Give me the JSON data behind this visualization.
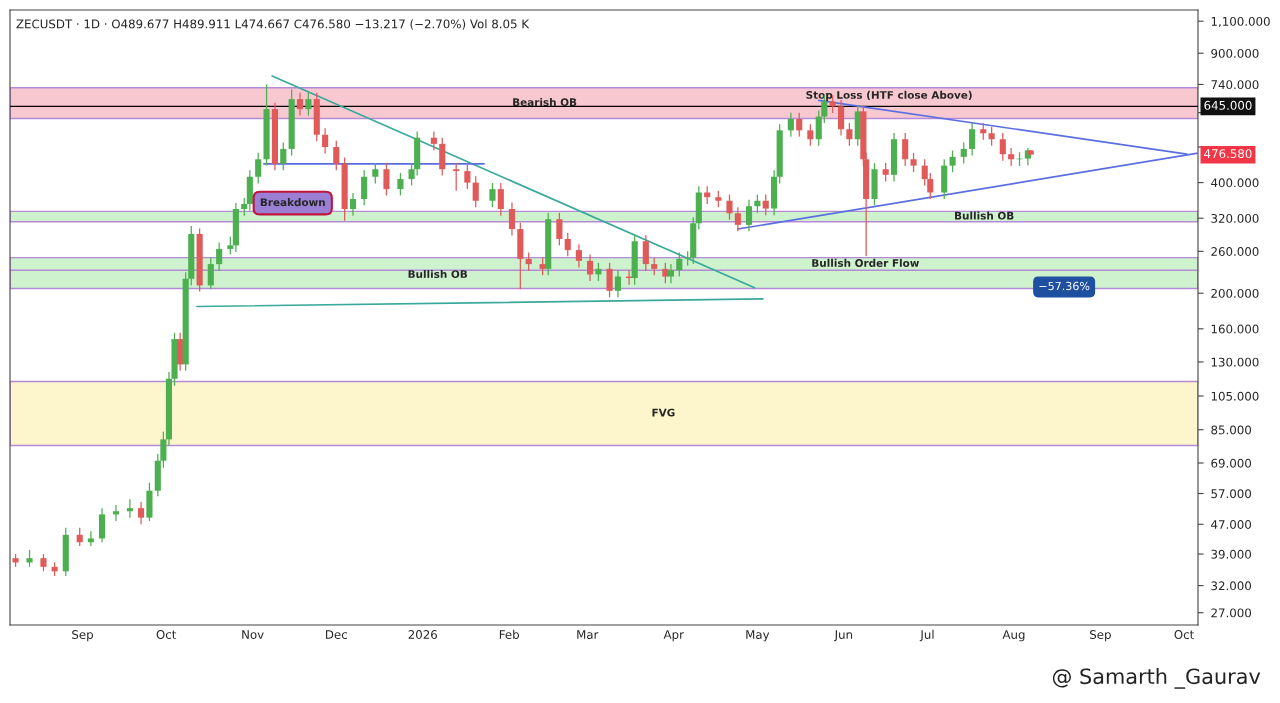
{
  "chart_data": {
    "type": "candlestick",
    "colors": [
      "#e05a5a",
      "#4caf50",
      "#e05a5a",
      "#e05a5a",
      "#4caf50",
      "#e05a5a",
      "#4caf50",
      "#4caf50",
      "#4caf50",
      "#4caf50",
      "#e05a5a",
      "#4caf50",
      "#4caf50",
      "#4caf50",
      "#4caf50",
      "#4caf50",
      "#e05a5a",
      "#4caf50",
      "#4caf50",
      "#e05a5a",
      "#4caf50",
      "#4caf50",
      "#4caf50",
      "#4caf50",
      "#4caf50",
      "#4caf50",
      "#4caf50",
      "#4caf50",
      "#e05a5a",
      "#4caf50",
      "#4caf50",
      "#e05a5a",
      "#4caf50",
      "#e05a5a",
      "#e05a5a",
      "#e05a5a",
      "#e05a5a",
      "#4caf50",
      "#4caf50",
      "#4caf50",
      "#e05a5a",
      "#4caf50",
      "#4caf50",
      "#4caf50",
      "#e05a5a",
      "#e05a5a",
      "#e05a5a",
      "#e05a5a",
      "#e05a5a",
      "#4caf50",
      "#e05a5a",
      "#e05a5a",
      "#e05a5a",
      "#e05a5a",
      "#e05a5a",
      "#4caf50",
      "#e05a5a",
      "#e05a5a",
      "#e05a5a",
      "#e05a5a",
      "#4caf50",
      "#e05a5a",
      "#4caf50",
      "#e05a5a",
      "#4caf50",
      "#e05a5a",
      "#e05a5a",
      "#e05a5a",
      "#4caf50",
      "#4caf50",
      "#4caf50",
      "#4caf50",
      "#4caf50",
      "#e05a5a",
      "#e05a5a",
      "#e05a5a",
      "#e05a5a",
      "#4caf50",
      "#4caf50",
      "#e05a5a",
      "#4caf50",
      "#4caf50",
      "#4caf50",
      "#e05a5a",
      "#e05a5a",
      "#4caf50",
      "#4caf50",
      "#e05a5a",
      "#e05a5a",
      "#e05a5a",
      "#4caf50",
      "#e05a5a",
      "#e05a5a",
      "#4caf50",
      "#e05a5a",
      "#4caf50",
      "#e05a5a",
      "#e05a5a",
      "#e05a5a",
      "#e05a5a",
      "#4caf50",
      "#4caf50",
      "#4caf50",
      "#4caf50",
      "#e05a5a",
      "#e05a5a",
      "#e05a5a",
      "#e05a5a",
      "#4caf50",
      "#4caf50",
      "#e05a5a"
    ],
    "x": [
      "2025-08-08",
      "2025-08-13",
      "2025-08-18",
      "2025-08-22",
      "2025-08-26",
      "2025-08-31",
      "2025-09-04",
      "2025-09-08",
      "2025-09-13",
      "2025-09-18",
      "2025-09-22",
      "2025-09-25",
      "2025-09-28",
      "2025-09-30",
      "2025-10-02",
      "2025-10-04",
      "2025-10-06",
      "2025-10-08",
      "2025-10-10",
      "2025-10-13",
      "2025-10-17",
      "2025-10-20",
      "2025-10-24",
      "2025-10-26",
      "2025-10-29",
      "2025-10-31",
      "2025-11-03",
      "2025-11-06",
      "2025-11-09",
      "2025-11-12",
      "2025-11-15",
      "2025-11-18",
      "2025-11-21",
      "2025-11-24",
      "2025-11-27",
      "2025-12-01",
      "2025-12-04",
      "2025-12-07",
      "2025-12-11",
      "2025-12-15",
      "2025-12-19",
      "2025-12-24",
      "2025-12-28",
      "2025-12-30",
      "2026-01-05",
      "2026-01-08",
      "2026-01-13",
      "2026-01-17",
      "2026-01-20",
      "2026-01-26",
      "2026-01-29",
      "2026-02-02",
      "2026-02-05",
      "2026-02-08",
      "2026-02-13",
      "2026-02-15",
      "2026-02-19",
      "2026-02-22",
      "2026-02-26",
      "2026-03-02",
      "2026-03-05",
      "2026-03-09",
      "2026-03-12",
      "2026-03-16",
      "2026-03-18",
      "2026-03-22",
      "2026-03-25",
      "2026-03-29",
      "2026-03-31",
      "2026-04-03",
      "2026-04-06",
      "2026-04-08",
      "2026-04-10",
      "2026-04-13",
      "2026-04-17",
      "2026-04-21",
      "2026-04-24",
      "2026-04-28",
      "2026-05-01",
      "2026-05-04",
      "2026-05-07",
      "2026-05-09",
      "2026-05-13",
      "2026-05-16",
      "2026-05-20",
      "2026-05-23",
      "2026-05-25",
      "2026-05-28",
      "2026-05-31",
      "2026-06-03",
      "2026-06-06",
      "2026-06-08",
      "2026-06-09",
      "2026-06-12",
      "2026-06-16",
      "2026-06-19",
      "2026-06-23",
      "2026-06-26",
      "2026-06-30",
      "2026-07-02",
      "2026-07-07",
      "2026-07-10",
      "2026-07-14",
      "2026-07-17",
      "2026-07-21",
      "2026-07-24",
      "2026-07-28",
      "2026-07-31",
      "2026-08-03",
      "2026-08-06",
      "2026-08-07"
    ],
    "ohlc": [
      [
        38,
        39,
        36,
        37
      ],
      [
        37,
        40,
        36,
        38
      ],
      [
        38,
        39,
        35,
        36
      ],
      [
        36,
        37,
        34,
        35
      ],
      [
        35,
        46,
        34,
        44
      ],
      [
        44,
        46,
        41,
        42
      ],
      [
        42,
        45,
        41,
        43
      ],
      [
        43,
        52,
        42,
        50
      ],
      [
        50,
        53,
        48,
        51
      ],
      [
        51,
        55,
        49,
        52
      ],
      [
        52,
        54,
        47,
        49
      ],
      [
        49,
        61,
        48,
        58
      ],
      [
        58,
        73,
        56,
        70
      ],
      [
        70,
        84,
        67,
        80
      ],
      [
        80,
        122,
        77,
        117
      ],
      [
        117,
        156,
        112,
        150
      ],
      [
        150,
        156,
        123,
        128
      ],
      [
        128,
        228,
        123,
        219
      ],
      [
        219,
        305,
        210,
        290
      ],
      [
        290,
        300,
        202,
        210
      ],
      [
        210,
        250,
        205,
        240
      ],
      [
        240,
        275,
        230,
        264
      ],
      [
        264,
        285,
        255,
        270
      ],
      [
        270,
        352,
        259,
        339
      ],
      [
        339,
        364,
        325,
        350
      ],
      [
        350,
        432,
        336,
        415
      ],
      [
        415,
        482,
        398,
        463
      ],
      [
        463,
        740,
        445,
        634
      ],
      [
        634,
        660,
        432,
        450
      ],
      [
        450,
        514,
        432,
        494
      ],
      [
        494,
        718,
        474,
        675
      ],
      [
        675,
        702,
        609,
        634
      ],
      [
        634,
        702,
        609,
        675
      ],
      [
        675,
        702,
        518,
        540
      ],
      [
        540,
        562,
        480,
        500
      ],
      [
        500,
        520,
        432,
        450
      ],
      [
        450,
        468,
        315,
        339
      ],
      [
        339,
        375,
        325,
        361
      ],
      [
        361,
        432,
        347,
        415
      ],
      [
        415,
        452,
        398,
        435
      ],
      [
        435,
        452,
        369,
        384
      ],
      [
        384,
        425,
        369,
        409
      ],
      [
        409,
        452,
        393,
        435
      ],
      [
        435,
        551,
        418,
        530
      ],
      [
        530,
        551,
        490,
        510
      ],
      [
        510,
        530,
        418,
        435
      ],
      [
        435,
        452,
        380,
        430
      ],
      [
        430,
        447,
        384,
        400
      ],
      [
        400,
        416,
        343,
        357
      ],
      [
        357,
        399,
        343,
        384
      ],
      [
        384,
        399,
        325,
        339
      ],
      [
        339,
        353,
        287,
        299
      ],
      [
        299,
        311,
        205,
        248
      ],
      [
        248,
        258,
        230,
        240
      ],
      [
        240,
        250,
        224,
        233
      ],
      [
        233,
        331,
        224,
        318
      ],
      [
        318,
        331,
        270,
        281
      ],
      [
        281,
        292,
        252,
        262
      ],
      [
        262,
        272,
        235,
        245
      ],
      [
        245,
        255,
        216,
        225
      ],
      [
        225,
        242,
        216,
        233
      ],
      [
        233,
        242,
        195,
        203
      ],
      [
        203,
        231,
        195,
        222
      ],
      [
        222,
        231,
        211,
        220
      ],
      [
        220,
        288,
        211,
        277
      ],
      [
        277,
        288,
        230,
        240
      ],
      [
        240,
        250,
        224,
        233
      ],
      [
        233,
        242,
        213,
        222
      ],
      [
        222,
        240,
        213,
        231
      ],
      [
        231,
        258,
        222,
        248
      ],
      [
        248,
        260,
        238,
        250
      ],
      [
        250,
        322,
        240,
        310
      ],
      [
        310,
        391,
        298,
        376
      ],
      [
        376,
        391,
        350,
        365
      ],
      [
        365,
        380,
        343,
        357
      ],
      [
        357,
        371,
        317,
        330
      ],
      [
        330,
        343,
        295,
        307
      ],
      [
        307,
        359,
        295,
        345
      ],
      [
        345,
        371,
        331,
        357
      ],
      [
        357,
        371,
        326,
        340
      ],
      [
        340,
        432,
        326,
        415
      ],
      [
        415,
        577,
        398,
        555
      ],
      [
        555,
        620,
        533,
        596
      ],
      [
        596,
        620,
        533,
        555
      ],
      [
        555,
        577,
        504,
        525
      ],
      [
        525,
        629,
        504,
        605
      ],
      [
        605,
        692,
        581,
        665
      ],
      [
        665,
        692,
        619,
        645
      ],
      [
        645,
        671,
        537,
        559
      ],
      [
        559,
        581,
        504,
        525
      ],
      [
        525,
        650,
        504,
        625
      ],
      [
        625,
        650,
        444,
        463
      ],
      [
        463,
        482,
        252,
        361
      ],
      [
        361,
        452,
        347,
        435
      ],
      [
        435,
        452,
        403,
        420
      ],
      [
        420,
        546,
        403,
        525
      ],
      [
        525,
        546,
        444,
        463
      ],
      [
        463,
        482,
        427,
        445
      ],
      [
        445,
        463,
        393,
        409
      ],
      [
        409,
        425,
        361,
        376
      ],
      [
        376,
        463,
        361,
        445
      ],
      [
        445,
        489,
        427,
        470
      ],
      [
        470,
        514,
        451,
        494
      ],
      [
        494,
        581,
        474,
        559
      ],
      [
        559,
        581,
        523,
        545
      ],
      [
        545,
        567,
        504,
        525
      ],
      [
        525,
        546,
        459,
        478
      ],
      [
        478,
        497,
        444,
        463
      ],
      [
        463,
        484,
        444,
        465
      ],
      [
        465,
        497,
        446,
        489.677
      ],
      [
        489.677,
        489.911,
        474.667,
        476.58
      ]
    ],
    "series": [
      {
        "type": "line",
        "color": "#3aa89a",
        "x": [
          "2025-11-08",
          "2026-04-30"
        ],
        "values": [
          780,
          207
        ]
      },
      {
        "type": "line",
        "color": "#3aa89a",
        "x": [
          "2025-10-12",
          "2026-05-03"
        ],
        "values": [
          184,
          193
        ]
      },
      {
        "type": "line",
        "color": "#5b6ee1",
        "x": [
          "2026-05-23",
          "2026-10-02"
        ],
        "values": [
          670,
          478
        ]
      },
      {
        "type": "line",
        "color": "#5b6ee1",
        "x": [
          "2026-04-24",
          "2026-10-06"
        ],
        "values": [
          299,
          481
        ]
      },
      {
        "type": "line",
        "color": "#5b6ee1",
        "x": [
          "2025-11-05",
          "2026-01-23"
        ],
        "values": [
          450,
          450
        ]
      }
    ],
    "log": "y",
    "xlim": [
      "2025-08-06",
      "2026-10-06"
    ],
    "xticks": [
      {
        "value": "2025-09-01",
        "label": "Sep"
      },
      {
        "value": "2025-10-01",
        "label": "Oct"
      },
      {
        "value": "2025-11-01",
        "label": "Nov"
      },
      {
        "value": "2025-12-01",
        "label": "Dec"
      },
      {
        "value": "2026-01-01",
        "label": "2026"
      },
      {
        "value": "2026-02-01",
        "label": "Feb"
      },
      {
        "value": "2026-03-01",
        "label": "Mar"
      },
      {
        "value": "2026-04-01",
        "label": "Apr"
      },
      {
        "value": "2026-05-01",
        "label": "May"
      },
      {
        "value": "2026-06-01",
        "label": "Jun"
      },
      {
        "value": "2026-07-01",
        "label": "Jul"
      },
      {
        "value": "2026-08-01",
        "label": "Aug"
      },
      {
        "value": "2026-09-01",
        "label": "Sep"
      },
      {
        "value": "2026-10-01",
        "label": "Oct"
      }
    ],
    "ylim": [
      25,
      1180
    ],
    "yticks": [
      {
        "value": 27,
        "label": "27.000"
      },
      {
        "value": 32,
        "label": "32.000"
      },
      {
        "value": 39,
        "label": "39.000"
      },
      {
        "value": 47,
        "label": "47.000"
      },
      {
        "value": 57,
        "label": "57.000"
      },
      {
        "value": 69,
        "label": "69.000"
      },
      {
        "value": 85,
        "label": "85.000"
      },
      {
        "value": 105,
        "label": "105.000"
      },
      {
        "value": 130,
        "label": "130.000"
      },
      {
        "value": 160,
        "label": "160.000"
      },
      {
        "value": 200,
        "label": "200.000"
      },
      {
        "value": 260,
        "label": "260.000"
      },
      {
        "value": 320,
        "label": "320.000"
      },
      {
        "value": 400,
        "label": "400.000"
      },
      {
        "value": 500,
        "label": null
      },
      {
        "value": 620,
        "label": null
      },
      {
        "value": 740,
        "label": "740.000"
      },
      {
        "value": 900,
        "label": "900.000"
      },
      {
        "value": 1100,
        "label": "1,100.000"
      }
    ],
    "bands": [
      {
        "axis": "y",
        "from": 598,
        "to": 725,
        "label": "Bearish OB",
        "color": "#f8c8d0"
      },
      {
        "axis": "y",
        "from": 206,
        "to": 244,
        "label": "Bullish OB",
        "color": "#cdf2cd"
      },
      {
        "axis": "y",
        "from": 313,
        "to": 334,
        "label": "Bullish OB",
        "color": "#cdf2cd"
      },
      {
        "axis": "y",
        "from": 231,
        "to": 250,
        "label": "Bullish Order Flow",
        "color": "#cdf2cd"
      },
      {
        "axis": "y",
        "from": 77,
        "to": 115,
        "label": "FVG",
        "color": "#fdf5cc"
      }
    ],
    "ref_lines": [
      {
        "axis": "y",
        "value": 645,
        "label": "Stop Loss (HTF close Above)",
        "color": "#000000"
      }
    ],
    "annotations": [
      "ZECUSDT · 1D · O489.677 H489.911 L474.667 C476.580 −13.217 (−2.70%) Vol 8.05 K",
      "Breakdown",
      {
        "text": "−57.36%",
        "x": "2026-08-19",
        "y": 208
      },
      {
        "text": "645.000",
        "x": "2026-10-06",
        "y": 645
      },
      {
        "text": "476.580",
        "x": "2026-10-06",
        "y": 476.58
      },
      "@ Samarth _Gaurav"
    ],
    "grid": false,
    "legend": false
  }
}
